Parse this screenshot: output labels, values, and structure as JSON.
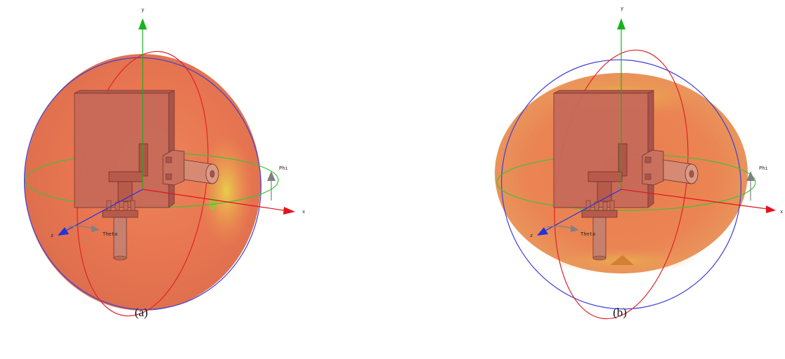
{
  "figures": [
    {
      "id": "a",
      "caption": "(a)",
      "axes": {
        "x": "x",
        "y": "y",
        "z": "z",
        "theta": "Theta",
        "phi": "Phi"
      },
      "pattern_shape": "near-spherical"
    },
    {
      "id": "b",
      "caption": "(b)",
      "axes": {
        "x": "x",
        "y": "y",
        "z": "z",
        "theta": "Theta",
        "phi": "Phi"
      },
      "pattern_shape": "flattened-ellipsoid"
    }
  ],
  "colors": {
    "pattern": "#e76c45",
    "pattern_highlight": "#f0b45a",
    "antenna": "#c9685a",
    "x_axis": "#e0141b",
    "y_axis": "#18b21e",
    "z_axis": "#2233dd",
    "green_ring": "#3bc436",
    "blue_ring": "#3f3fd6",
    "red_ring": "#e0222b",
    "angle_arrow": "#808080"
  }
}
